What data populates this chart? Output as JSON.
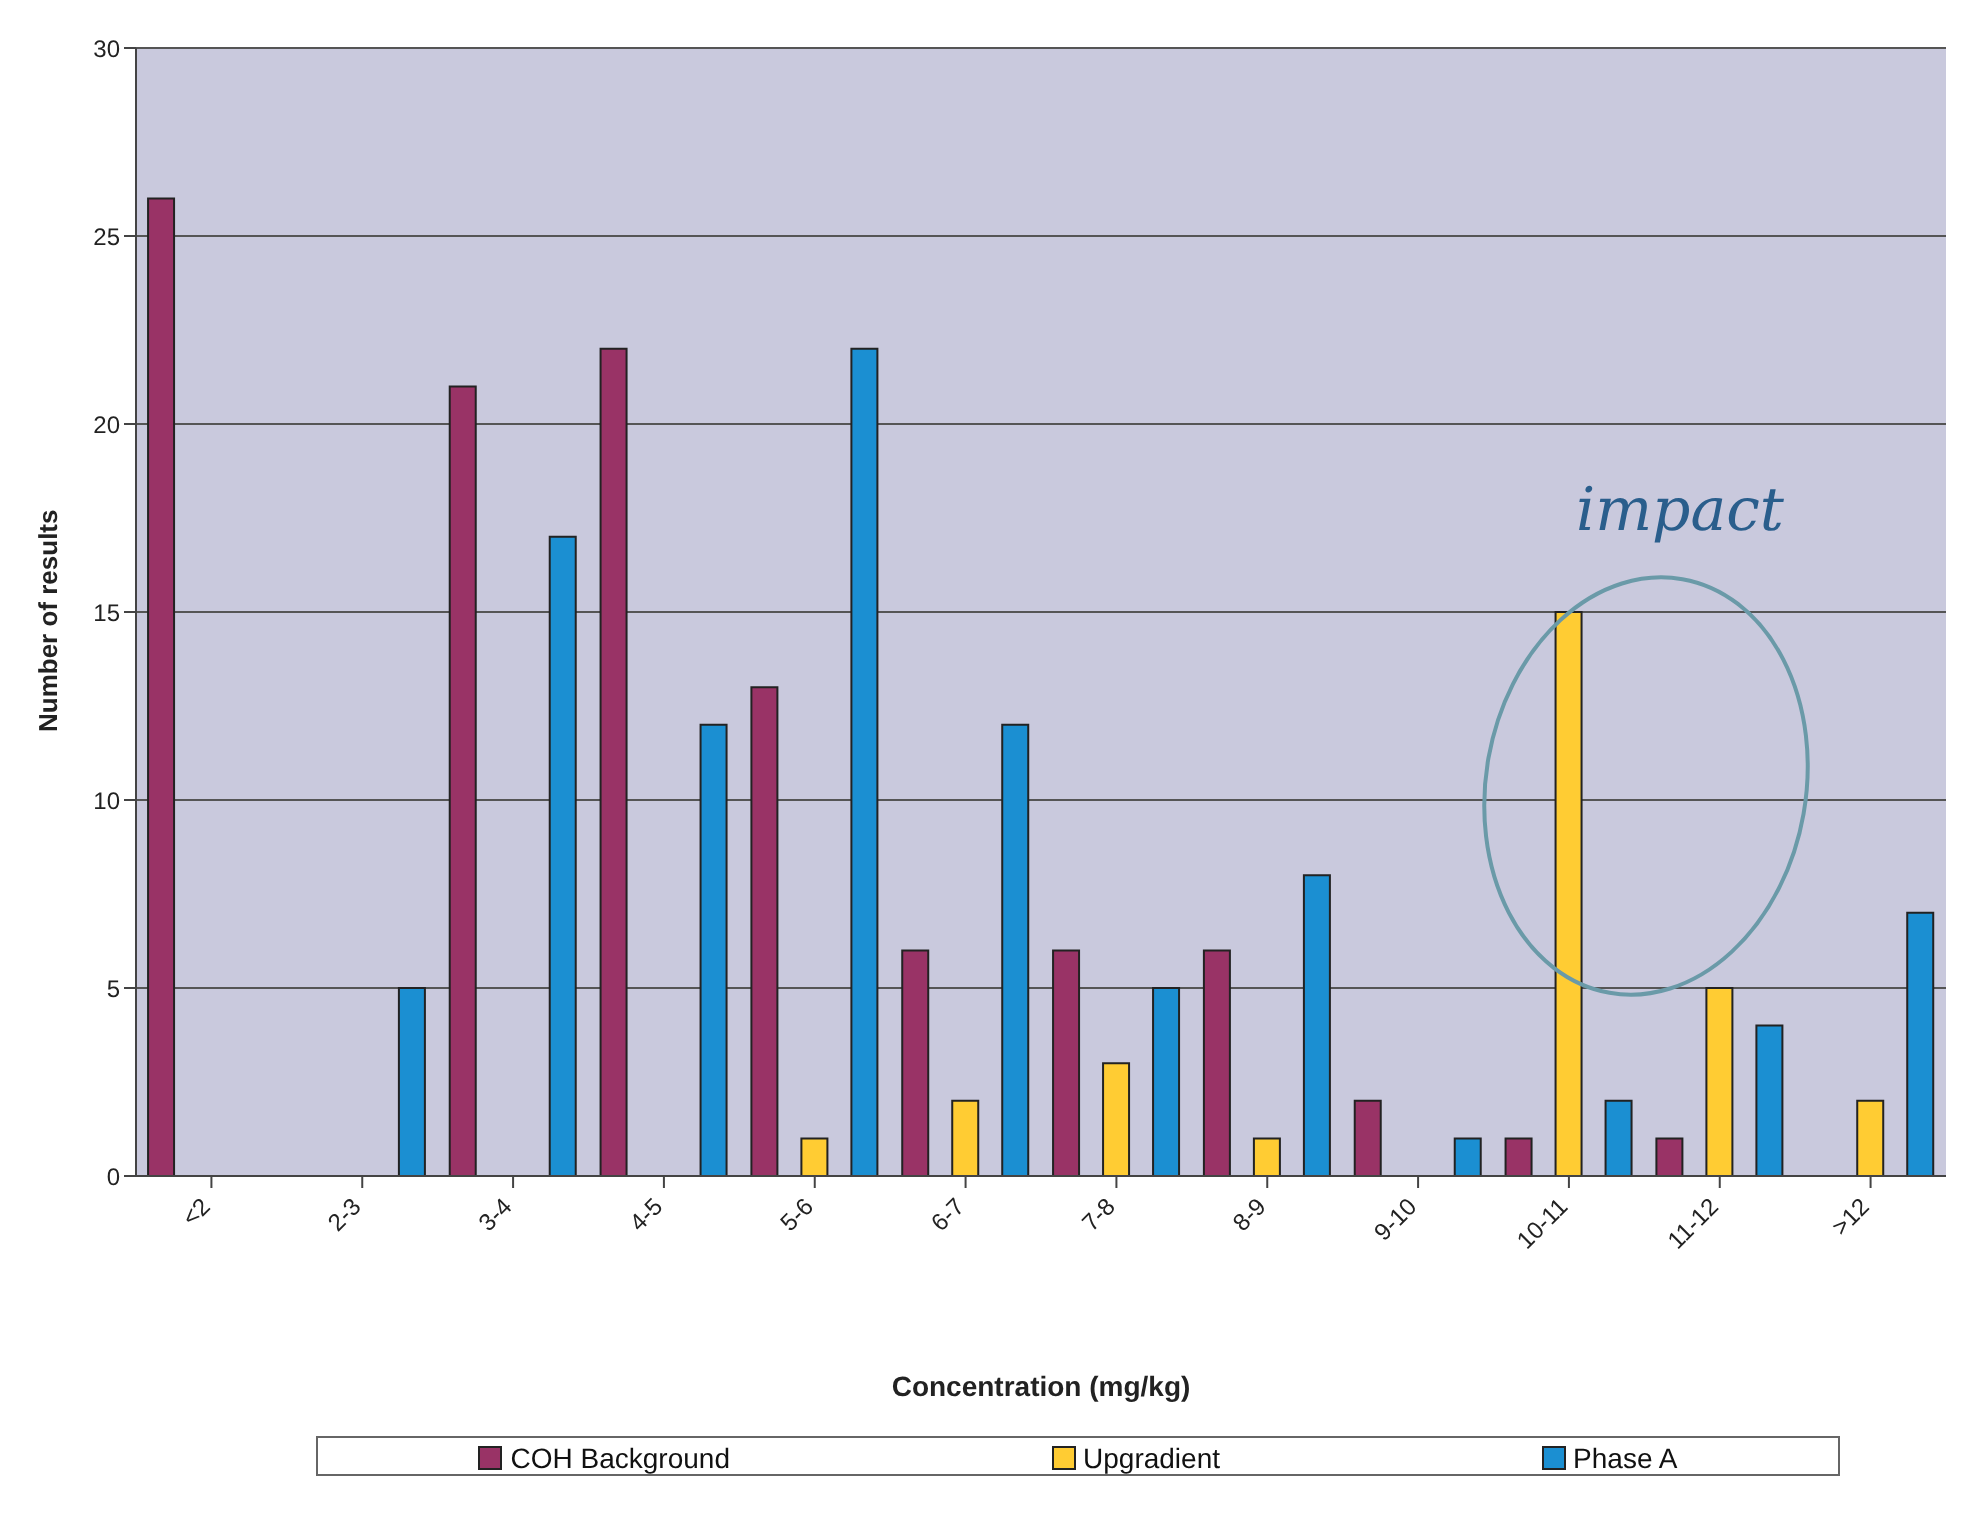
{
  "chart_data": {
    "type": "bar",
    "xlabel": "Concentration (mg/kg)",
    "ylabel": "Number of results",
    "categories": [
      "<2",
      "2-3",
      "3-4",
      "4-5",
      "5-6",
      "6-7",
      "7-8",
      "8-9",
      "9-10",
      "10-11",
      "11-12",
      ">12"
    ],
    "series": [
      {
        "name": "COH Background",
        "color": "#993366",
        "values": [
          26,
          0,
          21,
          22,
          13,
          6,
          6,
          6,
          2,
          1,
          1,
          0
        ]
      },
      {
        "name": "Upgradient",
        "color": "#ffcc33",
        "values": [
          0,
          0,
          0,
          0,
          1,
          2,
          3,
          1,
          0,
          15,
          5,
          2
        ]
      },
      {
        "name": "Phase A",
        "color": "#1b8fd2",
        "values": [
          0,
          5,
          17,
          12,
          22,
          12,
          5,
          8,
          1,
          2,
          4,
          7
        ]
      }
    ],
    "ylim": [
      0,
      30
    ],
    "yticks": [
      0,
      5,
      10,
      15,
      20,
      25,
      30
    ],
    "grid": "y",
    "legend": "bottom",
    "annotations": [
      "impact"
    ]
  }
}
